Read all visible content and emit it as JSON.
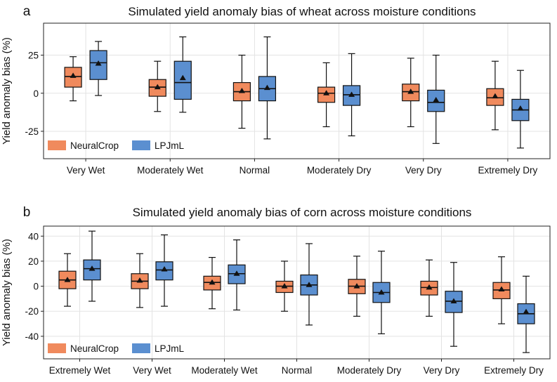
{
  "chart_data": [
    {
      "type": "box",
      "panel": "a",
      "title": "Simulated yield anomaly bias of wheat across moisture conditions",
      "ylabel": "Yield anomaly bias (%)",
      "xlabel": "",
      "ylim": [
        -43,
        46
      ],
      "yticks": [
        -25,
        0,
        25
      ],
      "grid": true,
      "legend_position": "bottom-left",
      "categories": [
        "Very Wet",
        "Moderately Wet",
        "Normal",
        "Moderately Dry",
        "Very Dry",
        "Extremely Dry"
      ],
      "series": [
        {
          "name": "NeuralCrop",
          "color": "#f08a5d",
          "boxes": [
            {
              "whisker_low": -5,
              "q1": 4,
              "median": 11,
              "q3": 17,
              "whisker_high": 24,
              "mean": 11.5
            },
            {
              "whisker_low": -12,
              "q1": -2,
              "median": 4,
              "q3": 9,
              "whisker_high": 21,
              "mean": 4
            },
            {
              "whisker_low": -23,
              "q1": -5,
              "median": 1,
              "q3": 7,
              "whisker_high": 25,
              "mean": 1.5
            },
            {
              "whisker_low": -22,
              "q1": -6,
              "median": 0,
              "q3": 4,
              "whisker_high": 20,
              "mean": 0
            },
            {
              "whisker_low": -22,
              "q1": -5,
              "median": 1,
              "q3": 6,
              "whisker_high": 23,
              "mean": 1
            },
            {
              "whisker_low": -24,
              "q1": -8,
              "median": -3,
              "q3": 3,
              "whisker_high": 21,
              "mean": -2
            }
          ]
        },
        {
          "name": "LPJmL",
          "color": "#5b8fd0",
          "boxes": [
            {
              "whisker_low": -1.5,
              "q1": 9,
              "median": 20,
              "q3": 28,
              "whisker_high": 34,
              "mean": 19.5
            },
            {
              "whisker_low": -12.5,
              "q1": -4,
              "median": 7,
              "q3": 21,
              "whisker_high": 37,
              "mean": 10
            },
            {
              "whisker_low": -30,
              "q1": -5,
              "median": 3,
              "q3": 11,
              "whisker_high": 37,
              "mean": 3.5
            },
            {
              "whisker_low": -28,
              "q1": -8,
              "median": -1,
              "q3": 5,
              "whisker_high": 26,
              "mean": -1
            },
            {
              "whisker_low": -33,
              "q1": -12,
              "median": -6,
              "q3": 2,
              "whisker_high": 25,
              "mean": -4.5
            },
            {
              "whisker_low": -36,
              "q1": -18,
              "median": -11,
              "q3": -4,
              "whisker_high": 15,
              "mean": -10
            }
          ]
        }
      ]
    },
    {
      "type": "box",
      "panel": "b",
      "title": "Simulated yield anomaly bias of corn across moisture conditions",
      "ylabel": "Yield anomaly bias (%)",
      "xlabel": "",
      "ylim": [
        -58,
        48
      ],
      "yticks": [
        -40,
        -20,
        0,
        20,
        40
      ],
      "grid": true,
      "legend_position": "bottom-left",
      "categories": [
        "Extremely Wet",
        "Very Wet",
        "Moderately Wet",
        "Normal",
        "Moderately Dry",
        "Very Dry",
        "Extremely Dry"
      ],
      "series": [
        {
          "name": "NeuralCrop",
          "color": "#f08a5d",
          "boxes": [
            {
              "whisker_low": -16,
              "q1": -2,
              "median": 5,
              "q3": 12,
              "whisker_high": 26,
              "mean": 5
            },
            {
              "whisker_low": -17,
              "q1": -2,
              "median": 4,
              "q3": 10,
              "whisker_high": 26,
              "mean": 4.5
            },
            {
              "whisker_low": -18,
              "q1": -3,
              "median": 3,
              "q3": 8,
              "whisker_high": 23,
              "mean": 3
            },
            {
              "whisker_low": -20,
              "q1": -5,
              "median": 0,
              "q3": 4,
              "whisker_high": 20,
              "mean": 0
            },
            {
              "whisker_low": -24,
              "q1": -6,
              "median": 0,
              "q3": 5.5,
              "whisker_high": 24,
              "mean": 0
            },
            {
              "whisker_low": -24,
              "q1": -7,
              "median": -1,
              "q3": 4,
              "whisker_high": 21,
              "mean": -1
            },
            {
              "whisker_low": -30,
              "q1": -10,
              "median": -3,
              "q3": 3,
              "whisker_high": 23.5,
              "mean": -2.5
            }
          ]
        },
        {
          "name": "LPJmL",
          "color": "#5b8fd0",
          "boxes": [
            {
              "whisker_low": -12,
              "q1": 5,
              "median": 14,
              "q3": 21,
              "whisker_high": 44,
              "mean": 14
            },
            {
              "whisker_low": -16,
              "q1": 5,
              "median": 13,
              "q3": 19.5,
              "whisker_high": 41,
              "mean": 13.5
            },
            {
              "whisker_low": -19,
              "q1": 2,
              "median": 10,
              "q3": 17,
              "whisker_high": 37,
              "mean": 10
            },
            {
              "whisker_low": -31,
              "q1": -7,
              "median": 1,
              "q3": 9,
              "whisker_high": 34,
              "mean": 1
            },
            {
              "whisker_low": -38,
              "q1": -13,
              "median": -5,
              "q3": 3,
              "whisker_high": 28,
              "mean": -5
            },
            {
              "whisker_low": -48,
              "q1": -21,
              "median": -12,
              "q3": -4,
              "whisker_high": 19,
              "mean": -12
            },
            {
              "whisker_low": -53,
              "q1": -30,
              "median": -22,
              "q3": -14,
              "whisker_high": 8,
              "mean": -20.5
            }
          ]
        }
      ]
    }
  ]
}
